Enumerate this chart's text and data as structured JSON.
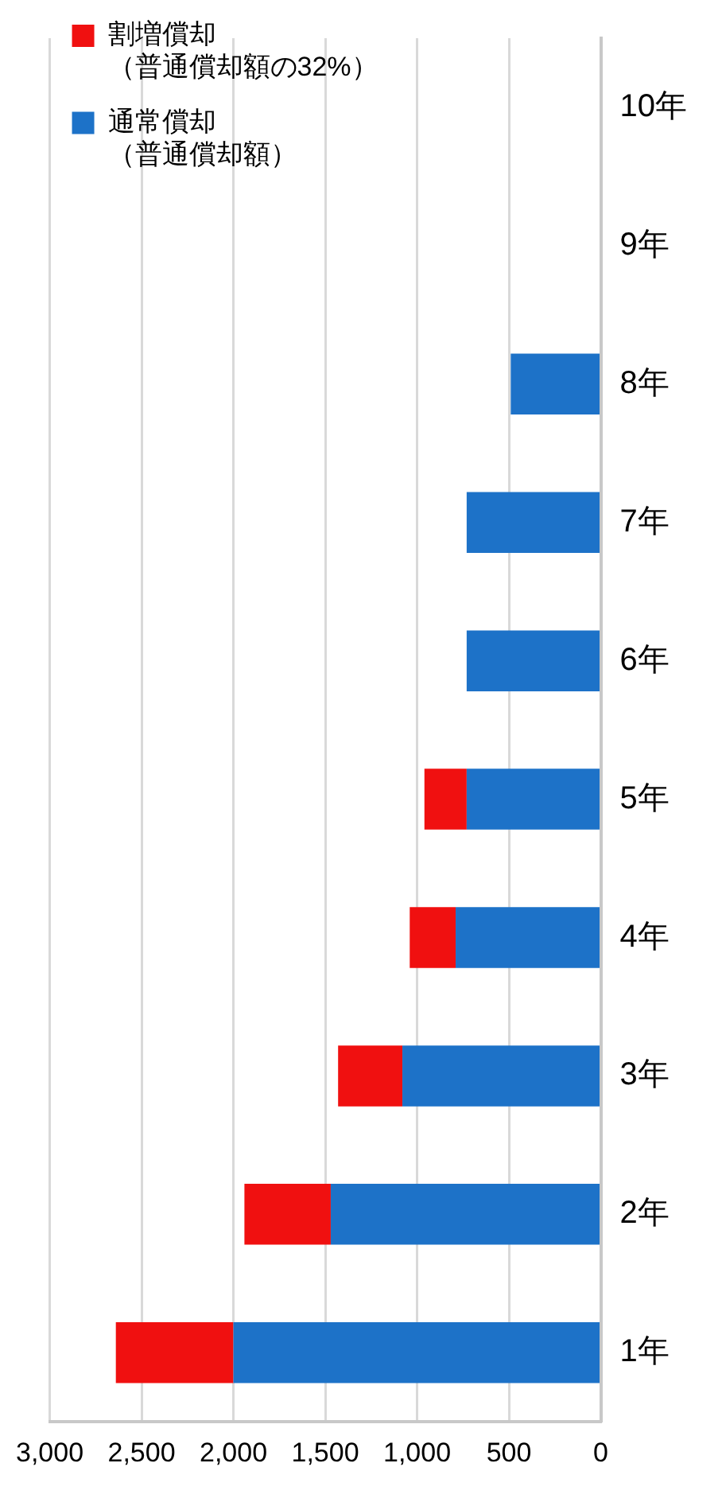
{
  "chart_data": {
    "type": "bar",
    "stacked": true,
    "orientation": "horizontal",
    "categories": [
      "10年",
      "9年",
      "8年",
      "7年",
      "6年",
      "5年",
      "4年",
      "3年",
      "2年",
      "1年"
    ],
    "series": [
      {
        "name": "通常償却（普通償却額）",
        "color": "#1d72c8",
        "values": [
          null,
          null,
          490,
          730,
          730,
          730,
          790,
          1080,
          1470,
          2000
        ]
      },
      {
        "name": "割増償却（普通償却額の32%）",
        "color": "#f01010",
        "values": [
          null,
          null,
          null,
          null,
          null,
          230,
          250,
          350,
          470,
          640
        ]
      }
    ],
    "xlim": [
      3000,
      0
    ],
    "xticks": [
      {
        "value": 3000,
        "label": "3,000"
      },
      {
        "value": 2500,
        "label": "2,500"
      },
      {
        "value": 2000,
        "label": "2,000"
      },
      {
        "value": 1500,
        "label": "1,500"
      },
      {
        "value": 1000,
        "label": "1,000"
      },
      {
        "value": 500,
        "label": "500"
      },
      {
        "value": 0,
        "label": "0"
      }
    ],
    "grid": "x",
    "legend": "top left"
  }
}
